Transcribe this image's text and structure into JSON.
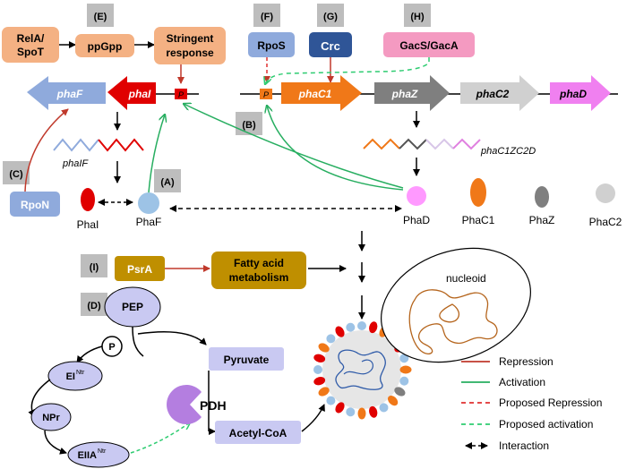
{
  "panels": [
    "(E)",
    "(F)",
    "(G)",
    "(H)",
    "(B)",
    "(C)",
    "(A)",
    "(I)",
    "(D)"
  ],
  "regulators": {
    "rela_spot_line1": "RelA/",
    "rela_spot_line2": "SpoT",
    "ppgpp": "ppGpp",
    "stringent_line1": "Stringent",
    "stringent_line2": "response",
    "rpos": "RpoS",
    "crc": "Crc",
    "gacs_gaca": "GacS/GacA",
    "rpon": "RpoN",
    "psra": "PsrA",
    "fatty_line1": "Fatty acid",
    "fatty_line2": "metabolism"
  },
  "genes": {
    "phaF": "phaF",
    "phaI": "phaI",
    "phaC1": "phaC1",
    "phaZ": "phaZ",
    "phaC2": "phaC2",
    "phaD": "phaD",
    "promoter": "P"
  },
  "transcripts": {
    "phaIF": "phaIF",
    "phaC1ZC2D": "phaC1ZC2D"
  },
  "proteins": {
    "phaI": "PhaI",
    "phaF": "PhaF",
    "phaD": "PhaD",
    "phaC1": "PhaC1",
    "phaZ": "PhaZ",
    "phaC2": "PhaC2"
  },
  "pts": {
    "pep": "PEP",
    "p": "P",
    "ei": "EI",
    "ntr": "Ntr",
    "npr": "NPr",
    "eiia": "EIIA",
    "pyruvate": "Pyruvate",
    "pdh": "PDH",
    "acetyl_coa": "Acetyl-CoA"
  },
  "nucleoid": "nucleoid",
  "legend": [
    {
      "label": "Repression",
      "color": "#c0392b",
      "style": "solid"
    },
    {
      "label": "Activation",
      "color": "#27ae60",
      "style": "solid"
    },
    {
      "label": "Proposed Repression",
      "color": "#e03030",
      "style": "dashed"
    },
    {
      "label": "Proposed activation",
      "color": "#2ecc71",
      "style": "dashed"
    },
    {
      "label": "Interaction",
      "color": "#000000",
      "style": "dashed-double"
    }
  ],
  "colors": {
    "orange_box": "#f4b183",
    "blue_box": "#8faadc",
    "crc_box": "#2f5597",
    "pink_box": "#f49ac1",
    "gold_box": "#bf8f00",
    "lavender_box": "#c9c9f2",
    "phaF_gene": "#8faadc",
    "phaI_gene": "#e00000",
    "phaC1_gene": "#f07818",
    "phaZ_gene": "#7f7f7f",
    "phaC2_gene": "#d0d0d0",
    "phaD_gene": "#f080f0"
  }
}
